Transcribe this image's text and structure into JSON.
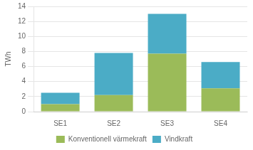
{
  "chart_data": {
    "type": "bar",
    "stacked": true,
    "categories": [
      "SE1",
      "SE2",
      "SE3",
      "SE4"
    ],
    "series": [
      {
        "name": "Konventionell värmekraft",
        "color": "#9BBB59",
        "values": [
          1.0,
          2.2,
          7.7,
          3.1
        ]
      },
      {
        "name": "Vindkraft",
        "color": "#4BACC6",
        "values": [
          1.5,
          5.6,
          5.3,
          3.5
        ]
      }
    ],
    "ylabel": "TWh",
    "ylim": [
      0,
      14
    ],
    "yticks": [
      0,
      2,
      4,
      6,
      8,
      10,
      12,
      14
    ],
    "grid": true,
    "legend": "bottom"
  }
}
